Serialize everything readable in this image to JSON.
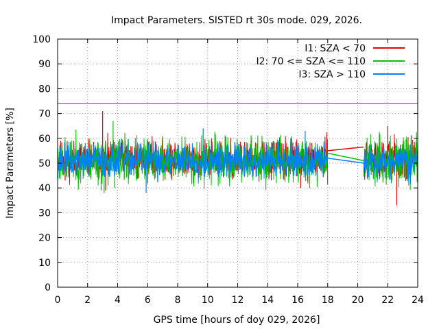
{
  "chart_data": {
    "type": "line",
    "title": "Impact Parameters. SISTED rt 30s mode. 029, 2026.",
    "xlabel": "GPS time [hours of doy 029, 2026]",
    "ylabel": "Impact Parameters [%]",
    "xlim": [
      0,
      24
    ],
    "ylim": [
      0,
      100
    ],
    "xticks": [
      0,
      2,
      4,
      6,
      8,
      10,
      12,
      14,
      16,
      18,
      20,
      22,
      24
    ],
    "yticks": [
      0,
      10,
      20,
      30,
      40,
      50,
      60,
      70,
      80,
      90,
      100
    ],
    "grid": true,
    "legend_position": "top-right",
    "data_gap": [
      18,
      20.4
    ],
    "reference_line": {
      "y": 74,
      "color": "#9400d3"
    },
    "series": [
      {
        "name": "I1: SZA < 70",
        "color": "#e00000",
        "center": 51.5,
        "spread": 5,
        "noise_seed": 11,
        "segment_after_gap_center": 52,
        "gap_connector": [
          [
            18,
            55
          ],
          [
            20.4,
            56.5
          ]
        ],
        "spikes": [
          [
            0.5,
            43
          ],
          [
            3.0,
            71
          ],
          [
            3.2,
            39
          ],
          [
            16.2,
            40
          ],
          [
            22.6,
            33
          ],
          [
            22.0,
            65
          ]
        ]
      },
      {
        "name": "I2: 70 <= SZA <= 110",
        "color": "#00c000",
        "center": 51,
        "spread": 6,
        "noise_seed": 23,
        "segment_after_gap_center": 51,
        "gap_connector": [
          [
            18,
            54
          ],
          [
            20.4,
            51
          ]
        ],
        "spikes": [
          [
            3.7,
            67
          ],
          [
            2.9,
            39
          ],
          [
            3.1,
            38
          ],
          [
            3.8,
            40
          ]
        ]
      },
      {
        "name": "I3: SZA > 110",
        "color": "#0080ff",
        "center": 51,
        "spread": 4.5,
        "noise_seed": 37,
        "segment_after_gap_center": 51,
        "gap_connector": [
          [
            18,
            52
          ],
          [
            20.4,
            50
          ]
        ],
        "spikes": [
          [
            9.7,
            64
          ],
          [
            5.9,
            38
          ],
          [
            16.5,
            63
          ]
        ]
      }
    ]
  }
}
